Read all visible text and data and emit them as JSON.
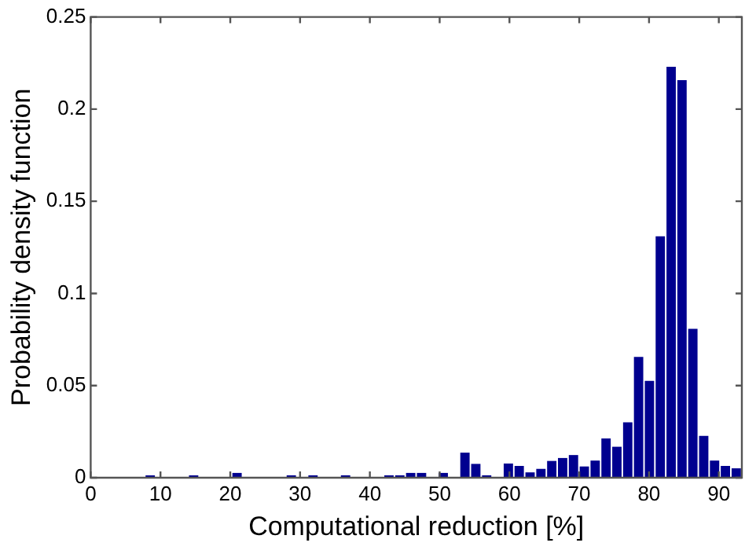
{
  "chart_data": {
    "type": "histogram",
    "xlabel": "Computational reduction [%]",
    "ylabel": "Probability density function",
    "bins": [
      7.75,
      9.31,
      10.86,
      12.42,
      13.97,
      15.53,
      17.08,
      18.64,
      20.19,
      21.75,
      23.3,
      24.86,
      26.41,
      27.97,
      29.52,
      31.08,
      32.63,
      34.19,
      35.74,
      37.3,
      38.85,
      40.41,
      41.96,
      43.52,
      45.07,
      46.63,
      48.18,
      49.74,
      51.29,
      52.85,
      54.4,
      55.96,
      57.51,
      59.07,
      60.62,
      62.18,
      63.73,
      65.29,
      66.84,
      68.4,
      69.95,
      71.51,
      73.06,
      74.62,
      76.17,
      77.73,
      79.28,
      80.84,
      82.39,
      83.95,
      85.5,
      87.06,
      88.61,
      90.17,
      91.72,
      93.28
    ],
    "values": [
      0.0013,
      0,
      0,
      0,
      0.0013,
      0,
      0,
      0,
      0.0026,
      0,
      0,
      0,
      0,
      0.0013,
      0,
      0.0013,
      0,
      0,
      0.0013,
      0,
      0,
      0,
      0.0013,
      0.0013,
      0.0026,
      0.0026,
      0,
      0.0026,
      0,
      0.0136,
      0.0075,
      0.0013,
      0,
      0.0077,
      0.0064,
      0.0029,
      0.0048,
      0.0091,
      0.0107,
      0.0123,
      0.0061,
      0.0093,
      0.0213,
      0.0168,
      0.0301,
      0.0656,
      0.0525,
      0.131,
      0.223,
      0.2157,
      0.0808,
      0.0227,
      0.0093,
      0.0064,
      0.0051
    ],
    "color": "#00008f",
    "xlim": [
      0,
      93.3
    ],
    "xticks": [
      0,
      10,
      20,
      30,
      40,
      50,
      60,
      70,
      80,
      90
    ],
    "ylim": [
      0,
      0.25
    ],
    "yticks": [
      0,
      0.05,
      0.1,
      0.15,
      0.2,
      0.25
    ],
    "grid": false
  }
}
